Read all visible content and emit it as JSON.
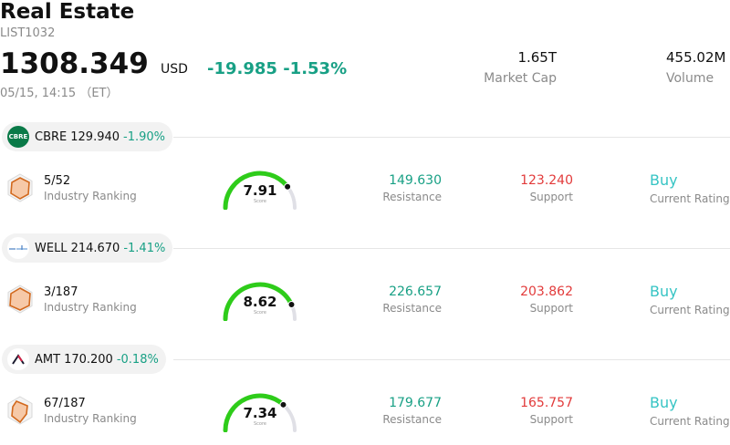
{
  "header": {
    "title": "Real Estate",
    "code": "LIST1032",
    "price": "1308.349",
    "currency": "USD",
    "change": "-19.985 -1.53%",
    "datetime": "05/15, 14:15 （ET）"
  },
  "stats": {
    "market_cap_value": "1.65T",
    "market_cap_label": "Market Cap",
    "volume_value": "455.02M",
    "volume_label": "Volume"
  },
  "stocks": [
    {
      "symbol": "CBRE",
      "logo_text": "CBRE",
      "price": "129.940",
      "change": "-1.90%",
      "rank": "5/52",
      "rank_label": "Industry Ranking",
      "score": "7.91",
      "score_fraction": 0.791,
      "score_label": "Score",
      "resistance": "149.630",
      "resistance_label": "Resistance",
      "support": "123.240",
      "support_label": "Support",
      "rating": "Buy",
      "rating_label": "Current Rating"
    },
    {
      "symbol": "WELL",
      "logo_text": "",
      "price": "214.670",
      "change": "-1.41%",
      "rank": "3/187",
      "rank_label": "Industry Ranking",
      "score": "8.62",
      "score_fraction": 0.862,
      "score_label": "Score",
      "resistance": "226.657",
      "resistance_label": "Resistance",
      "support": "203.862",
      "support_label": "Support",
      "rating": "Buy",
      "rating_label": "Current Rating"
    },
    {
      "symbol": "AMT",
      "logo_text": "",
      "price": "170.200",
      "change": "-0.18%",
      "rank": "67/187",
      "rank_label": "Industry Ranking",
      "score": "7.34",
      "score_fraction": 0.734,
      "score_label": "Score",
      "resistance": "179.677",
      "resistance_label": "Resistance",
      "support": "165.757",
      "support_label": "Support",
      "rating": "Buy",
      "rating_label": "Current Rating"
    }
  ],
  "icons": {
    "rank": "radar-chart-icon",
    "well_logo": "welltower-logo-icon",
    "amt_logo": "american-tower-logo-icon"
  },
  "colors": {
    "positive_accent": "#18a085",
    "negative": "#e23b3b",
    "rating": "#36c4c4",
    "gauge_green": "#2ecc1a",
    "gauge_track": "#e0e0e6"
  }
}
